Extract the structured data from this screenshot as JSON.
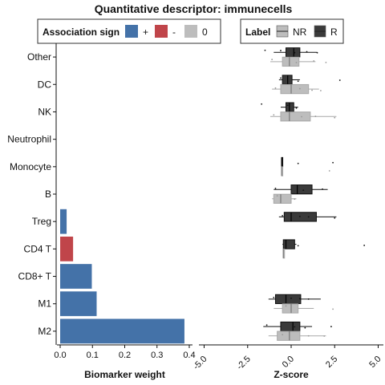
{
  "chart_data": {
    "title": "Quantitative descriptor: immunecells",
    "categories": [
      "Other",
      "DC",
      "NK",
      "Neutrophil",
      "Monocyte",
      "B",
      "Treg",
      "CD4 T",
      "CD8+ T",
      "M1",
      "M2"
    ],
    "legend_sign": {
      "title": "Association sign",
      "entries": [
        {
          "label": "+",
          "color": "#4472a8"
        },
        {
          "label": "-",
          "color": "#c0454a"
        },
        {
          "label": "0",
          "color": "#bdbdbd"
        }
      ]
    },
    "legend_label": {
      "title": "Label",
      "entries": [
        {
          "label": "NR",
          "color": "#bdbdbd"
        },
        {
          "label": "R",
          "color": "#3a3a3a"
        }
      ]
    },
    "charts": [
      {
        "type": "bar",
        "orientation": "horizontal",
        "xlabel": "Biomarker weight",
        "xlim": [
          -0.01,
          0.41
        ],
        "xticks": [
          0.0,
          0.1,
          0.2,
          0.3,
          0.4
        ],
        "xtick_labels": [
          "0.0",
          "0.1",
          "0.2",
          "0.3",
          "0.4"
        ],
        "bars": [
          {
            "category": "Treg",
            "value": 0.02,
            "sign": "+"
          },
          {
            "category": "CD4 T",
            "value": 0.04,
            "sign": "-"
          },
          {
            "category": "CD8+ T",
            "value": 0.098,
            "sign": "+"
          },
          {
            "category": "M1",
            "value": 0.113,
            "sign": "+"
          },
          {
            "category": "M2",
            "value": 0.385,
            "sign": "+"
          }
        ]
      },
      {
        "type": "box",
        "orientation": "horizontal",
        "xlabel": "Z-score",
        "xlim": [
          -5.3,
          5.3
        ],
        "xticks": [
          -5,
          -2.5,
          0,
          2.5,
          5
        ],
        "xtick_labels": [
          "-5.0",
          "-2.5",
          "0.0",
          "2.5",
          "5.0"
        ],
        "boxes": [
          {
            "category": "Other",
            "label": "R",
            "q1": -0.3,
            "median": 0.15,
            "q3": 0.5,
            "lo": -1.0,
            "hi": 1.5,
            "points": [
              -1.5,
              -0.6,
              0.2,
              0.9,
              1.5
            ]
          },
          {
            "category": "Other",
            "label": "NR",
            "q1": -0.5,
            "median": -0.1,
            "q3": 0.45,
            "lo": -1.2,
            "hi": 1.4,
            "points": [
              -1.1,
              0.3,
              1.3,
              2.0
            ]
          },
          {
            "category": "DC",
            "label": "R",
            "q1": -0.5,
            "median": -0.2,
            "q3": 0.05,
            "lo": -0.7,
            "hi": 0.5,
            "points": [
              -0.6,
              0.4,
              2.8
            ]
          },
          {
            "category": "DC",
            "label": "NR",
            "q1": -0.6,
            "median": 0.0,
            "q3": 1.0,
            "lo": -1.1,
            "hi": 1.6,
            "points": [
              -0.9,
              0.5,
              1.2,
              1.7
            ]
          },
          {
            "category": "NK",
            "label": "R",
            "q1": -0.3,
            "median": -0.1,
            "q3": 0.15,
            "lo": -0.6,
            "hi": 0.4,
            "points": [
              -1.7,
              -0.2,
              0.3
            ]
          },
          {
            "category": "NK",
            "label": "NR",
            "q1": -0.6,
            "median": -0.1,
            "q3": 1.1,
            "lo": -1.2,
            "hi": 2.6,
            "points": [
              -1.0,
              0.6,
              1.4,
              2.5
            ]
          },
          {
            "category": "Monocyte",
            "label": "R",
            "q1": -0.55,
            "median": -0.55,
            "q3": -0.5,
            "lo": -0.55,
            "hi": -0.5,
            "points": [
              0.4,
              2.4
            ]
          },
          {
            "category": "Monocyte",
            "label": "NR",
            "q1": -0.55,
            "median": -0.55,
            "q3": -0.5,
            "lo": -0.55,
            "hi": -0.5,
            "points": [
              2.2
            ]
          },
          {
            "category": "B",
            "label": "R",
            "q1": 0.0,
            "median": 0.35,
            "q3": 1.2,
            "lo": -1.0,
            "hi": 2.1,
            "points": [
              -0.9,
              0.7,
              1.8
            ]
          },
          {
            "category": "B",
            "label": "NR",
            "q1": -1.0,
            "median": -0.6,
            "q3": 0.0,
            "lo": -1.1,
            "hi": 0.3,
            "points": [
              -0.8,
              0.2
            ]
          },
          {
            "category": "Treg",
            "label": "R",
            "q1": -0.4,
            "median": 0.0,
            "q3": 1.45,
            "lo": -0.7,
            "hi": 2.6,
            "points": [
              -0.5,
              0.5,
              1.0,
              2.5
            ]
          },
          {
            "category": "CD4 T",
            "label": "R",
            "q1": -0.45,
            "median": -0.3,
            "q3": 0.2,
            "lo": -0.5,
            "hi": 0.3,
            "points": [
              0.4,
              4.2
            ]
          },
          {
            "category": "CD4 T",
            "label": "NR",
            "q1": -0.45,
            "median": -0.45,
            "q3": -0.4,
            "lo": -0.45,
            "hi": -0.4,
            "points": []
          },
          {
            "category": "M1",
            "label": "R",
            "q1": -0.9,
            "median": -0.3,
            "q3": 0.55,
            "lo": -1.3,
            "hi": 1.7,
            "points": [
              -1.0,
              0.0,
              0.5,
              1.0
            ]
          },
          {
            "category": "M1",
            "label": "NR",
            "q1": -0.5,
            "median": 0.0,
            "q3": 0.4,
            "lo": -1.0,
            "hi": 1.3,
            "points": [
              -0.3,
              2.4
            ]
          },
          {
            "category": "M2",
            "label": "R",
            "q1": -0.6,
            "median": 0.1,
            "q3": 0.5,
            "lo": -1.6,
            "hi": 1.2,
            "points": [
              -1.4,
              0.2,
              0.8,
              2.3
            ]
          },
          {
            "category": "M2",
            "label": "NR",
            "q1": -0.8,
            "median": -0.1,
            "q3": 0.5,
            "lo": -1.3,
            "hi": 2.0,
            "points": [
              -0.5,
              1.0,
              1.9
            ]
          }
        ]
      }
    ]
  }
}
